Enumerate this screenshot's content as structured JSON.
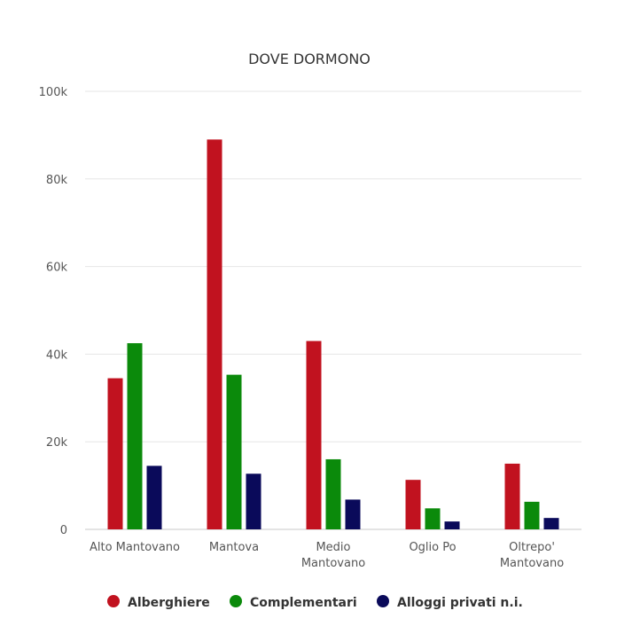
{
  "chart_data": {
    "type": "bar",
    "title": "DOVE DORMONO",
    "xlabel": "",
    "ylabel": "",
    "categories": [
      "Alto Mantovano",
      "Mantova",
      "Medio Mantovano",
      "Oglio Po",
      "Oltrepo' Mantovano"
    ],
    "category_label_lines": [
      [
        "Alto Mantovano"
      ],
      [
        "Mantova"
      ],
      [
        "Medio",
        "Mantovano"
      ],
      [
        "Oglio Po"
      ],
      [
        "Oltrepo'",
        "Mantovano"
      ]
    ],
    "ylim": [
      0,
      100000
    ],
    "yticks": [
      0,
      20000,
      40000,
      60000,
      80000,
      100000
    ],
    "ytick_labels": [
      "0",
      "20k",
      "40k",
      "60k",
      "80k",
      "100k"
    ],
    "grid": true,
    "legend_position": "bottom",
    "series": [
      {
        "name": "Alberghiere",
        "color": "#c1121f",
        "values": [
          34500,
          89000,
          43000,
          11300,
          15000
        ]
      },
      {
        "name": "Complementari",
        "color": "#0b8a0b",
        "values": [
          42500,
          35300,
          16000,
          4800,
          6300
        ]
      },
      {
        "name": "Alloggi privati n.i.",
        "color": "#0a0a5a",
        "values": [
          14500,
          12700,
          6800,
          1800,
          2600
        ]
      }
    ]
  }
}
